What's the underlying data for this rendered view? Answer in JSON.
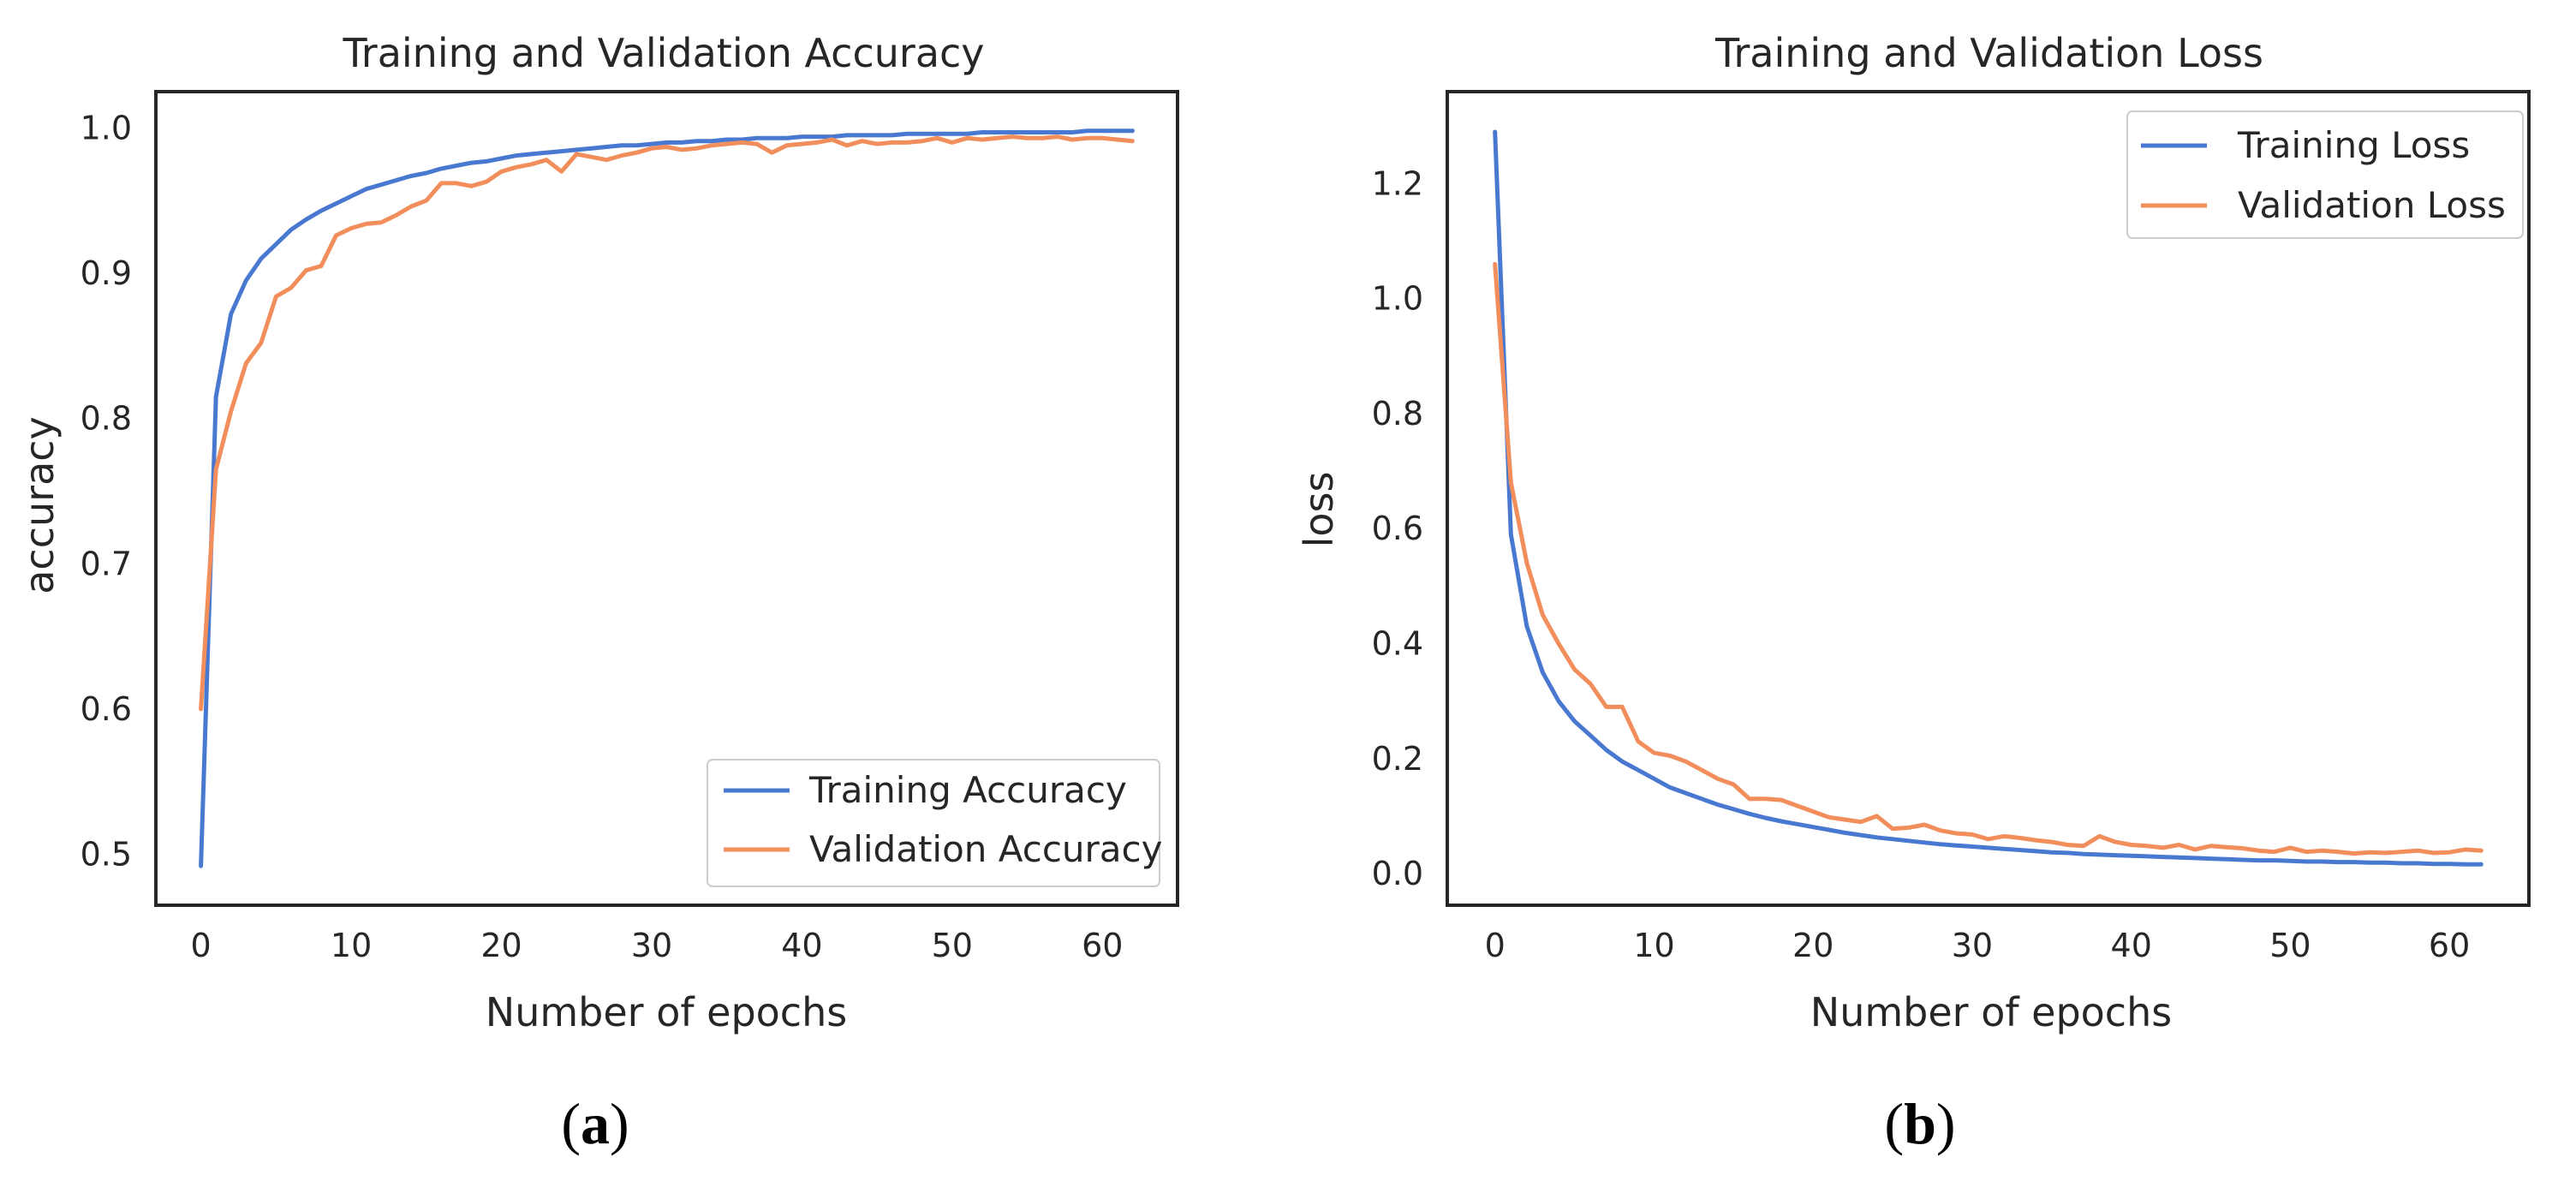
{
  "chart_data": [
    {
      "type": "line",
      "title": "Training and Validation Accuracy",
      "xlabel": "Number of epochs",
      "ylabel": "accuracy",
      "panel_label": "a",
      "xlim": [
        -3,
        65
      ],
      "ylim": [
        0.465,
        1.025
      ],
      "xticks": [
        0,
        10,
        20,
        30,
        40,
        50,
        60
      ],
      "yticks": [
        0.5,
        0.6,
        0.7,
        0.8,
        0.9,
        1.0
      ],
      "ytick_labels": [
        "0.5",
        "0.6",
        "0.7",
        "0.8",
        "0.9",
        "1.0"
      ],
      "grid": false,
      "legend_position": "lower-right",
      "series": [
        {
          "name": "Training Accuracy",
          "color": "#4878cf",
          "x": [
            0,
            1,
            2,
            3,
            4,
            5,
            6,
            7,
            8,
            9,
            10,
            11,
            12,
            13,
            14,
            15,
            16,
            17,
            18,
            19,
            20,
            21,
            22,
            23,
            24,
            25,
            26,
            27,
            28,
            29,
            30,
            31,
            32,
            33,
            34,
            35,
            36,
            37,
            38,
            39,
            40,
            41,
            42,
            43,
            44,
            45,
            46,
            47,
            48,
            49,
            50,
            51,
            52,
            53,
            54,
            55,
            56,
            57,
            58,
            59,
            60,
            61,
            62
          ],
          "y": [
            0.492,
            0.815,
            0.872,
            0.895,
            0.91,
            0.92,
            0.93,
            0.937,
            0.943,
            0.948,
            0.953,
            0.958,
            0.961,
            0.964,
            0.967,
            0.969,
            0.972,
            0.974,
            0.976,
            0.977,
            0.979,
            0.981,
            0.982,
            0.983,
            0.984,
            0.985,
            0.986,
            0.987,
            0.988,
            0.988,
            0.989,
            0.99,
            0.99,
            0.991,
            0.991,
            0.992,
            0.992,
            0.993,
            0.993,
            0.993,
            0.994,
            0.994,
            0.994,
            0.995,
            0.995,
            0.995,
            0.995,
            0.996,
            0.996,
            0.996,
            0.996,
            0.996,
            0.997,
            0.997,
            0.997,
            0.997,
            0.997,
            0.997,
            0.997,
            0.998,
            0.998,
            0.998,
            0.998
          ]
        },
        {
          "name": "Validation Accuracy",
          "color": "#f28e5c",
          "x": [
            0,
            1,
            2,
            3,
            4,
            5,
            6,
            7,
            8,
            9,
            10,
            11,
            12,
            13,
            14,
            15,
            16,
            17,
            18,
            19,
            20,
            21,
            22,
            23,
            24,
            25,
            26,
            27,
            28,
            29,
            30,
            31,
            32,
            33,
            34,
            35,
            36,
            37,
            38,
            39,
            40,
            41,
            42,
            43,
            44,
            45,
            46,
            47,
            48,
            49,
            50,
            51,
            52,
            53,
            54,
            55,
            56,
            57,
            58,
            59,
            60,
            61,
            62
          ],
          "y": [
            0.6,
            0.765,
            0.805,
            0.838,
            0.852,
            0.884,
            0.89,
            0.902,
            0.905,
            0.926,
            0.931,
            0.934,
            0.935,
            0.94,
            0.946,
            0.95,
            0.962,
            0.962,
            0.96,
            0.963,
            0.97,
            0.973,
            0.975,
            0.978,
            0.97,
            0.982,
            0.98,
            0.978,
            0.981,
            0.983,
            0.986,
            0.987,
            0.985,
            0.986,
            0.988,
            0.989,
            0.99,
            0.989,
            0.983,
            0.988,
            0.989,
            0.99,
            0.992,
            0.988,
            0.991,
            0.989,
            0.99,
            0.99,
            0.991,
            0.993,
            0.99,
            0.993,
            0.992,
            0.993,
            0.994,
            0.993,
            0.993,
            0.994,
            0.992,
            0.993,
            0.993,
            0.992,
            0.991
          ]
        }
      ]
    },
    {
      "type": "line",
      "title": "Training and Validation Loss",
      "xlabel": "Number of epochs",
      "ylabel": "loss",
      "panel_label": "b",
      "xlim": [
        -3,
        65
      ],
      "ylim": [
        -0.055,
        1.36
      ],
      "xticks": [
        0,
        10,
        20,
        30,
        40,
        50,
        60
      ],
      "yticks": [
        0.0,
        0.2,
        0.4,
        0.6,
        0.8,
        1.0,
        1.2
      ],
      "ytick_labels": [
        "0.0",
        "0.2",
        "0.4",
        "0.6",
        "0.8",
        "1.0",
        "1.2"
      ],
      "grid": false,
      "legend_position": "upper-right",
      "series": [
        {
          "name": "Training Loss",
          "color": "#4878cf",
          "x": [
            0,
            1,
            2,
            3,
            4,
            5,
            6,
            7,
            8,
            9,
            10,
            11,
            12,
            13,
            14,
            15,
            16,
            17,
            18,
            19,
            20,
            21,
            22,
            23,
            24,
            25,
            26,
            27,
            28,
            29,
            30,
            31,
            32,
            33,
            34,
            35,
            36,
            37,
            38,
            39,
            40,
            41,
            42,
            43,
            44,
            45,
            46,
            47,
            48,
            49,
            50,
            51,
            52,
            53,
            54,
            55,
            56,
            57,
            58,
            59,
            60,
            61,
            62
          ],
          "y": [
            1.29,
            0.59,
            0.43,
            0.35,
            0.3,
            0.265,
            0.24,
            0.215,
            0.195,
            0.18,
            0.165,
            0.15,
            0.14,
            0.13,
            0.12,
            0.112,
            0.104,
            0.097,
            0.091,
            0.086,
            0.081,
            0.076,
            0.071,
            0.067,
            0.063,
            0.06,
            0.057,
            0.054,
            0.051,
            0.049,
            0.047,
            0.045,
            0.043,
            0.041,
            0.039,
            0.037,
            0.036,
            0.034,
            0.033,
            0.032,
            0.031,
            0.03,
            0.029,
            0.028,
            0.027,
            0.026,
            0.025,
            0.024,
            0.023,
            0.023,
            0.022,
            0.021,
            0.021,
            0.02,
            0.02,
            0.019,
            0.019,
            0.018,
            0.018,
            0.017,
            0.017,
            0.016,
            0.016
          ]
        },
        {
          "name": "Validation Loss",
          "color": "#f28e5c",
          "x": [
            0,
            1,
            2,
            3,
            4,
            5,
            6,
            7,
            8,
            9,
            10,
            11,
            12,
            13,
            14,
            15,
            16,
            17,
            18,
            19,
            20,
            21,
            22,
            23,
            24,
            25,
            26,
            27,
            28,
            29,
            30,
            31,
            32,
            33,
            34,
            35,
            36,
            37,
            38,
            39,
            40,
            41,
            42,
            43,
            44,
            45,
            46,
            47,
            48,
            49,
            50,
            51,
            52,
            53,
            54,
            55,
            56,
            57,
            58,
            59,
            60,
            61,
            62
          ],
          "y": [
            1.06,
            0.68,
            0.54,
            0.45,
            0.4,
            0.355,
            0.33,
            0.29,
            0.29,
            0.23,
            0.21,
            0.205,
            0.195,
            0.18,
            0.165,
            0.155,
            0.13,
            0.13,
            0.128,
            0.118,
            0.108,
            0.098,
            0.094,
            0.09,
            0.1,
            0.078,
            0.08,
            0.085,
            0.075,
            0.07,
            0.068,
            0.06,
            0.065,
            0.062,
            0.058,
            0.055,
            0.05,
            0.048,
            0.065,
            0.055,
            0.05,
            0.048,
            0.045,
            0.05,
            0.042,
            0.048,
            0.046,
            0.044,
            0.04,
            0.038,
            0.045,
            0.038,
            0.04,
            0.038,
            0.035,
            0.037,
            0.036,
            0.038,
            0.04,
            0.036,
            0.037,
            0.042,
            0.04
          ]
        }
      ]
    }
  ]
}
